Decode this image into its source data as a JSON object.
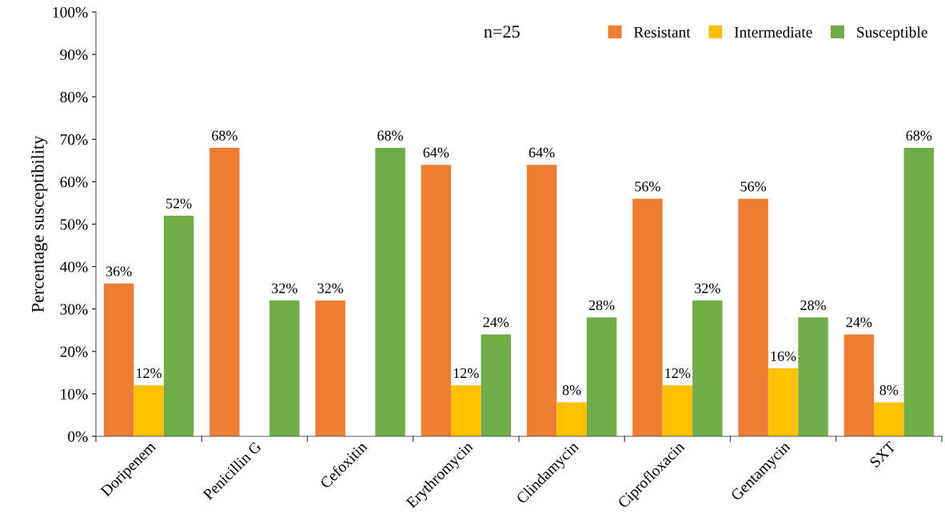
{
  "chart_data": {
    "type": "bar",
    "ylabel": "Percentage susceptibility",
    "categories": [
      "Doripenem",
      "Penicillin G",
      "Cefoxitin",
      "Erythromycin",
      "Clindamycin",
      "Ciprofloxacin",
      "Gentamycin",
      "SXT"
    ],
    "series": [
      {
        "name": "Resistant",
        "color": "#ed7d31",
        "values": [
          36,
          68,
          32,
          64,
          64,
          56,
          56,
          24
        ],
        "value_labels": [
          "36%",
          "68%",
          "32%",
          "64%",
          "64%",
          "56%",
          "56%",
          "24%"
        ]
      },
      {
        "name": "Intermediate",
        "color": "#ffc000",
        "values": [
          12,
          0,
          0,
          12,
          8,
          12,
          16,
          8
        ],
        "value_labels": [
          "12%",
          null,
          null,
          "12%",
          "8%",
          "12%",
          "16%",
          "8%"
        ]
      },
      {
        "name": "Susceptible",
        "color": "#70ad47",
        "values": [
          52,
          32,
          68,
          24,
          28,
          32,
          28,
          68
        ],
        "value_labels": [
          "52%",
          "32%",
          "68%",
          "24%",
          "28%",
          "32%",
          "28%",
          "68%"
        ]
      }
    ],
    "ylim": [
      0,
      100
    ],
    "yticks": [
      {
        "value": 0,
        "label": "0%"
      },
      {
        "value": 10,
        "label": "10%"
      },
      {
        "value": 20,
        "label": "20%"
      },
      {
        "value": 30,
        "label": "30%"
      },
      {
        "value": 40,
        "label": "40%"
      },
      {
        "value": 50,
        "label": "50%"
      },
      {
        "value": 60,
        "label": "60%"
      },
      {
        "value": 70,
        "label": "70%"
      },
      {
        "value": 80,
        "label": "80%"
      },
      {
        "value": 90,
        "label": "90%"
      },
      {
        "value": 100,
        "label": "100%"
      }
    ],
    "annotations": [
      "n=25"
    ],
    "legend": "top right",
    "grid": false
  }
}
